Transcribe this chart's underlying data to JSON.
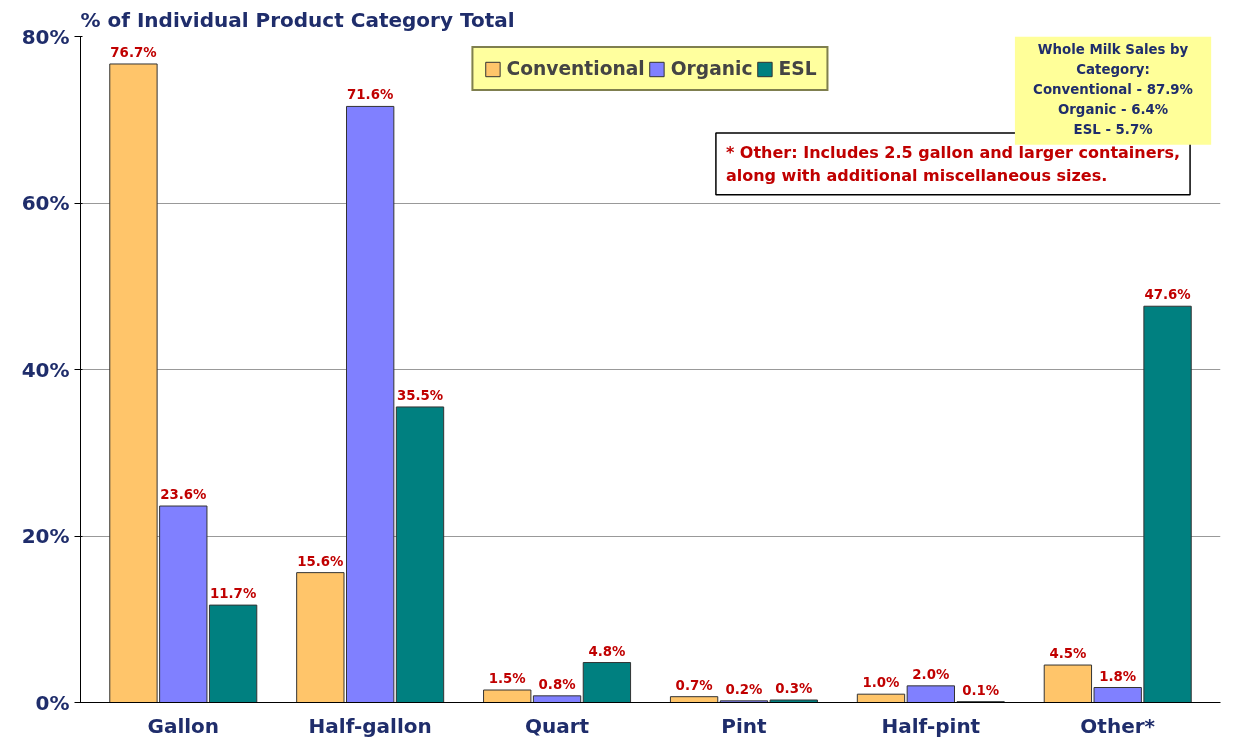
{
  "chart_data": {
    "type": "bar",
    "ylabel": "% of Individual Product Category Total",
    "categories": [
      "Gallon",
      "Half-gallon",
      "Quart",
      "Pint",
      "Half-pint",
      "Other*"
    ],
    "series": [
      {
        "name": "Conventional",
        "color": "#ffc56a",
        "values": [
          76.7,
          15.6,
          1.5,
          0.7,
          1.0,
          4.5
        ],
        "value_labels": [
          "76.7%",
          "15.6%",
          "1.5%",
          "0.7%",
          "1.0%",
          "4.5%"
        ]
      },
      {
        "name": "Organic",
        "color": "#8080ff",
        "values": [
          23.6,
          71.6,
          0.8,
          0.2,
          2.0,
          1.8
        ],
        "value_labels": [
          "23.6%",
          "71.6%",
          "0.8%",
          "0.2%",
          "2.0%",
          "1.8%"
        ]
      },
      {
        "name": "ESL",
        "color": "#008080",
        "values": [
          11.7,
          35.5,
          4.8,
          0.3,
          0.1,
          47.6
        ],
        "value_labels": [
          "11.7%",
          "35.5%",
          "4.8%",
          "0.3%",
          "0.1%",
          "47.6%"
        ]
      }
    ],
    "ylim": [
      0,
      80
    ],
    "yticks": [
      {
        "value": 0,
        "label": "0%"
      },
      {
        "value": 20,
        "label": "20%"
      },
      {
        "value": 40,
        "label": "40%"
      },
      {
        "value": 60,
        "label": "60%"
      },
      {
        "value": 80,
        "label": "80%"
      }
    ],
    "grid": "y",
    "legend": "top",
    "annotations": [
      "* Other: Includes 2.5 gallon and larger containers, along with additional miscellaneous sizes.",
      "Whole Milk Sales by Category:",
      "Conventional - 87.9%",
      "Organic - 6.4%",
      "ESL - 5.7%"
    ]
  }
}
